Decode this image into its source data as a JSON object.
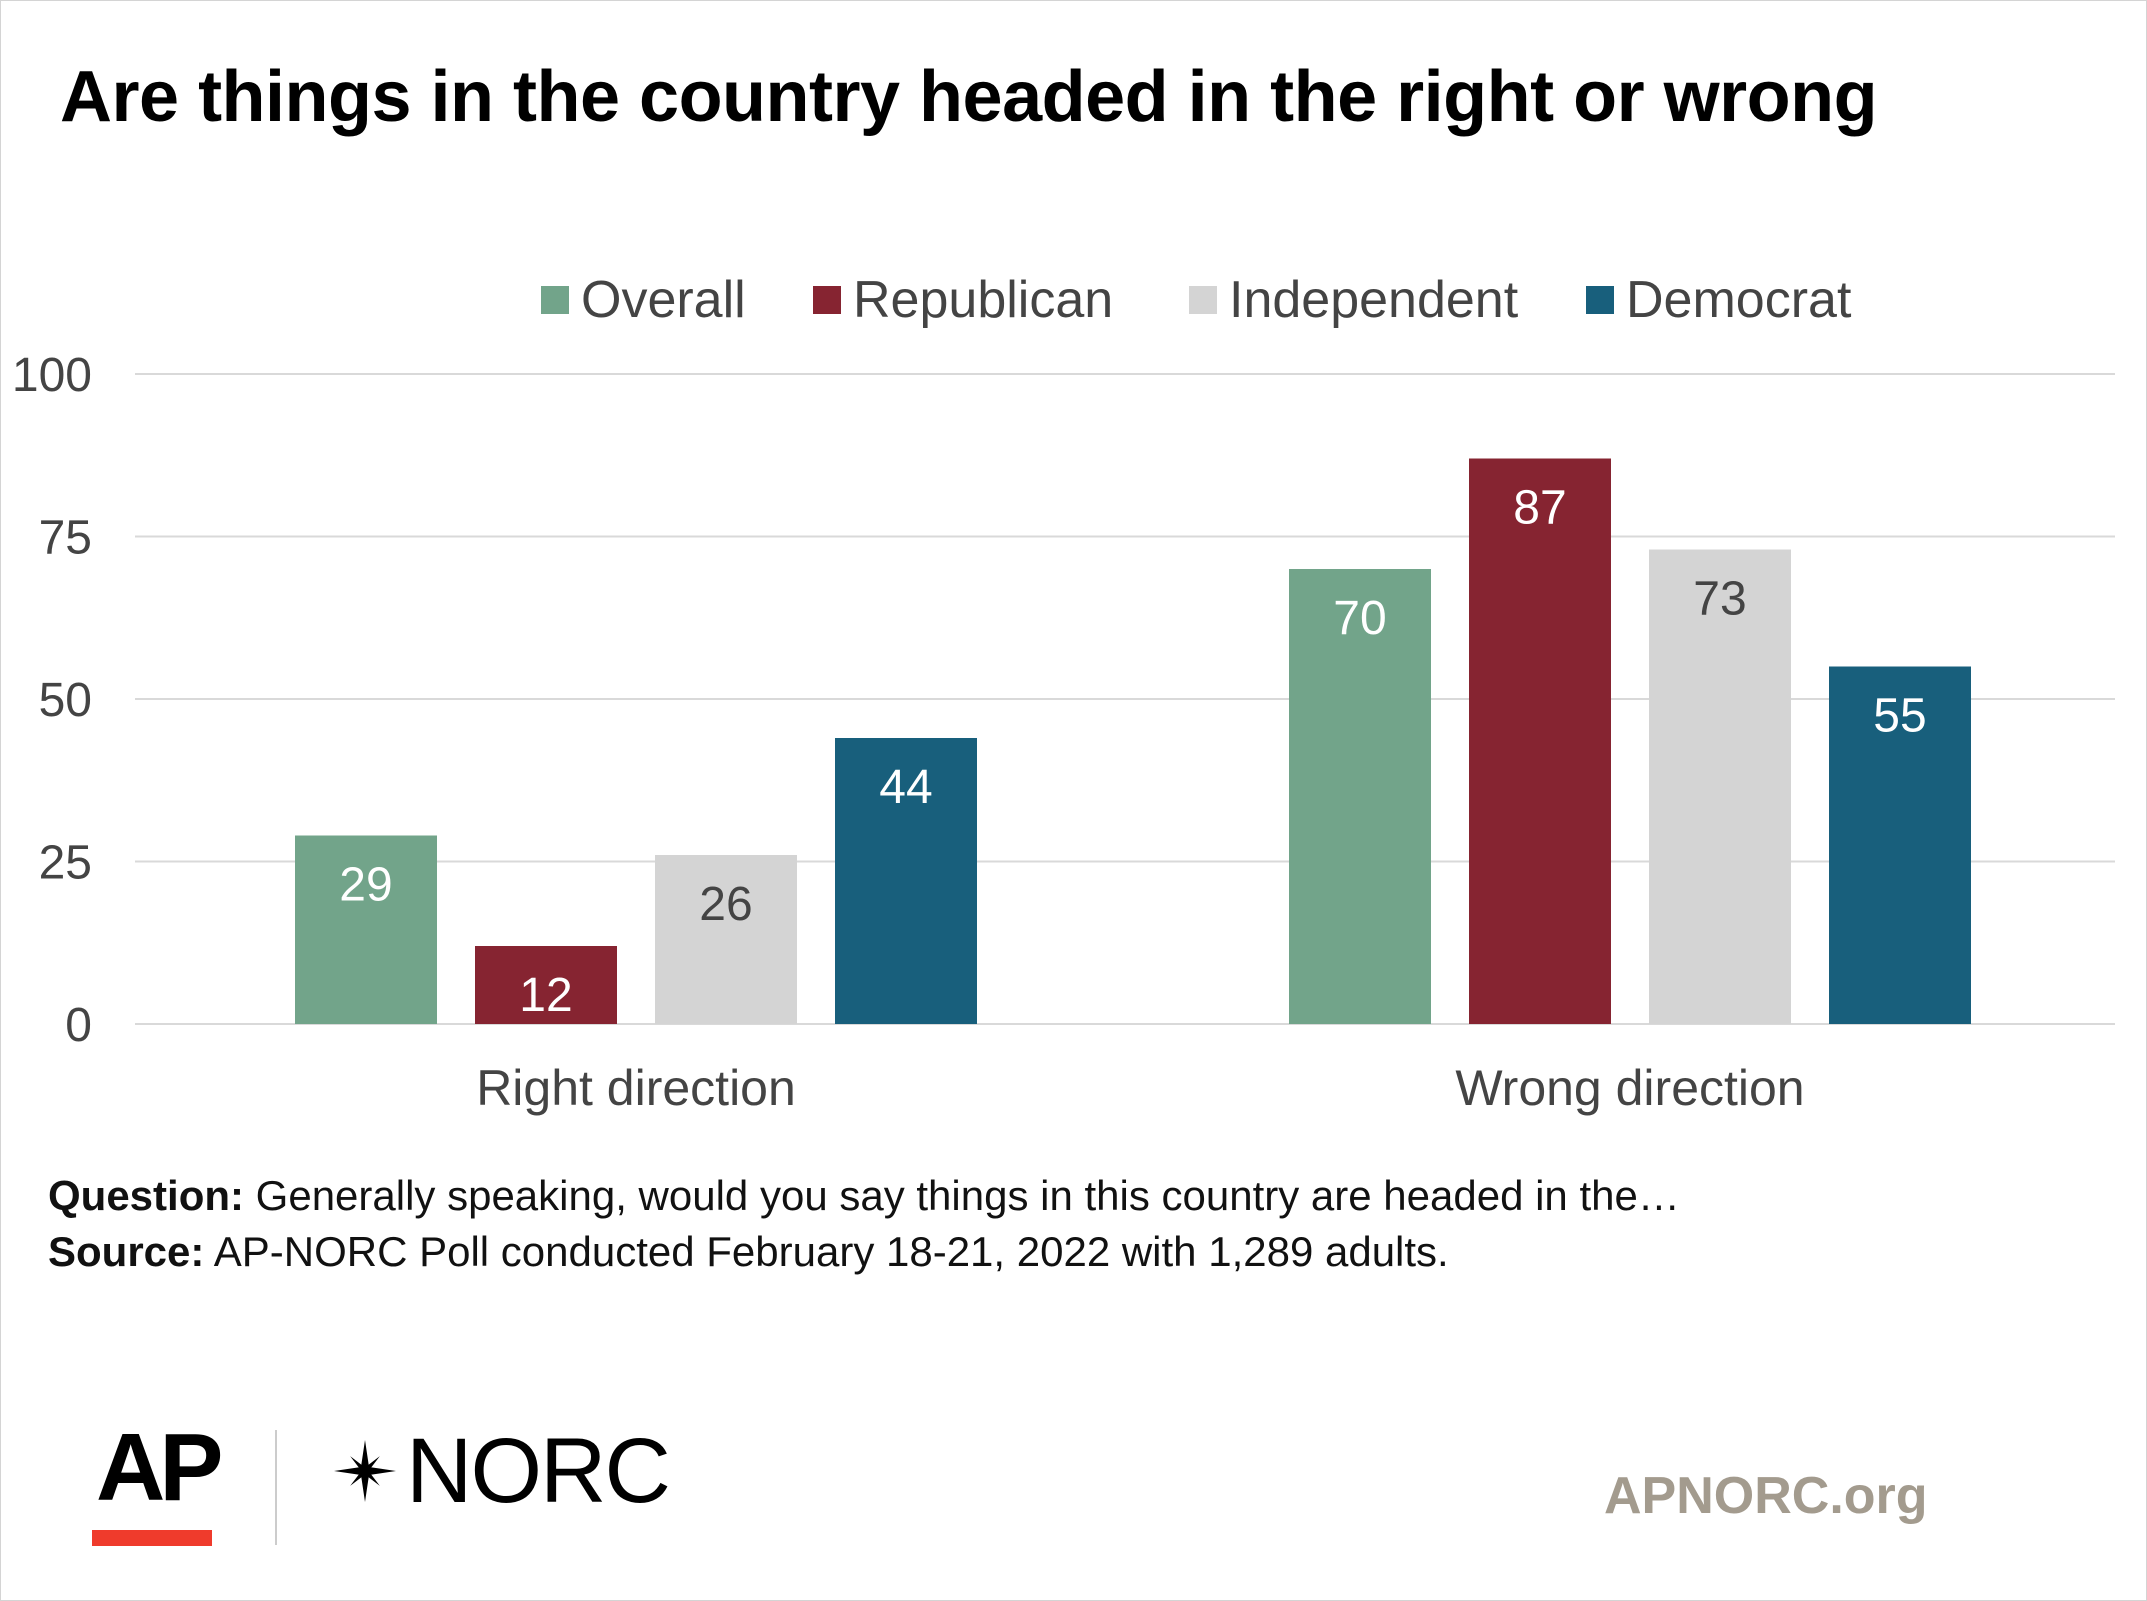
{
  "title": "Are things in the country headed in the right or wrong",
  "colors": {
    "overall": "#72a48a",
    "republican": "#862431",
    "independent": "#d4d4d4",
    "democrat": "#185f7c",
    "grid": "#d9d9d9",
    "axis_text": "#444444",
    "ap_red": "#ef3b2c",
    "site_text": "#a39b8e"
  },
  "chart_data": {
    "type": "bar",
    "title": "Are things in the country headed in the right or wrong",
    "categories": [
      "Right direction",
      "Wrong direction"
    ],
    "series": [
      {
        "name": "Overall",
        "color": "#72a48a",
        "label_color": "#ffffff",
        "values": [
          29,
          70
        ]
      },
      {
        "name": "Republican",
        "color": "#862431",
        "label_color": "#ffffff",
        "values": [
          12,
          87
        ]
      },
      {
        "name": "Independent",
        "color": "#d4d4d4",
        "label_color": "#444444",
        "values": [
          26,
          73
        ]
      },
      {
        "name": "Democrat",
        "color": "#185f7c",
        "label_color": "#ffffff",
        "values": [
          44,
          55
        ]
      }
    ],
    "ylim": [
      0,
      100
    ],
    "yticks": [
      0,
      25,
      50,
      75,
      100
    ],
    "grid": true,
    "legend_position": "top-right",
    "xlabel": "",
    "ylabel": ""
  },
  "footnotes": {
    "question_label": "Question:",
    "question_text": " Generally speaking, would you say things in this country are headed in the…",
    "source_label": "Source:",
    "source_text": " AP-NORC Poll conducted February 18-21, 2022 with 1,289 adults."
  },
  "logos": {
    "ap": "AP",
    "norc": "NORC",
    "site": "APNORC.org"
  }
}
